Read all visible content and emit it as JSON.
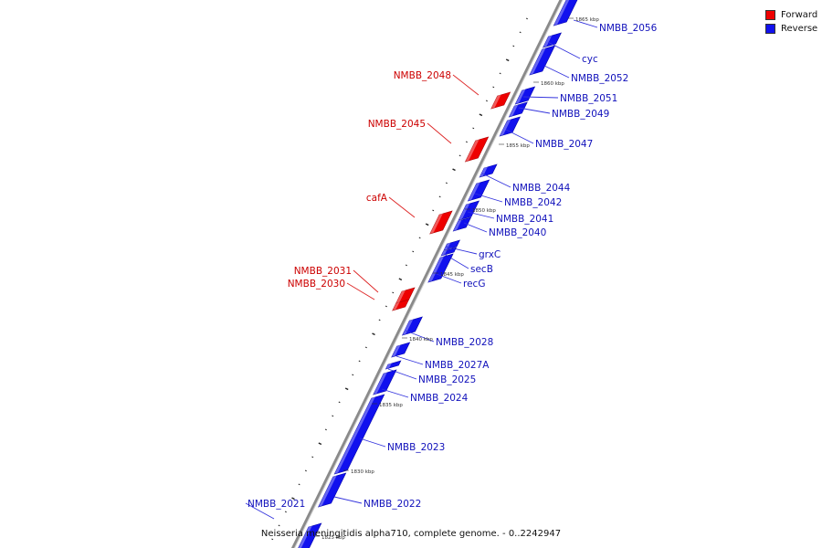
{
  "genome": {
    "title": "Neisseria meningitidis alpha710, complete genome. - 0..2242947"
  },
  "legend": {
    "forward_label": "Forward",
    "reverse_label": "Reverse"
  },
  "colors": {
    "forward": "#ee0000",
    "reverse": "#1111ee",
    "forward_text": "#cc0000",
    "reverse_text": "#1111bb",
    "axis": "#777777"
  },
  "scale_labels": [
    "1865 kbp",
    "1860 kbp",
    "1855 kbp",
    "1850 kbp",
    "1845 kbp",
    "1840 kbp",
    "1835 kbp",
    "1830 kbp",
    "1825 kbp"
  ],
  "genes": [
    {
      "label": "NMBB_2056",
      "strand": "reverse"
    },
    {
      "label": "cyc",
      "strand": "reverse"
    },
    {
      "label": "NMBB_2052",
      "strand": "reverse"
    },
    {
      "label": "NMBB_2051",
      "strand": "reverse"
    },
    {
      "label": "NMBB_2049",
      "strand": "reverse"
    },
    {
      "label": "NMBB_2048",
      "strand": "forward"
    },
    {
      "label": "NMBB_2047",
      "strand": "reverse"
    },
    {
      "label": "NMBB_2045",
      "strand": "forward"
    },
    {
      "label": "NMBB_2044",
      "strand": "reverse"
    },
    {
      "label": "NMBB_2042",
      "strand": "reverse"
    },
    {
      "label": "NMBB_2041",
      "strand": "reverse"
    },
    {
      "label": "cafA",
      "strand": "forward"
    },
    {
      "label": "NMBB_2040",
      "strand": "reverse"
    },
    {
      "label": "grxC",
      "strand": "reverse"
    },
    {
      "label": "secB",
      "strand": "reverse"
    },
    {
      "label": "recG",
      "strand": "reverse"
    },
    {
      "label": "NMBB_2031",
      "strand": "forward"
    },
    {
      "label": "NMBB_2030",
      "strand": "forward"
    },
    {
      "label": "NMBB_2028",
      "strand": "reverse"
    },
    {
      "label": "NMBB_2027A",
      "strand": "reverse"
    },
    {
      "label": "NMBB_2025",
      "strand": "reverse"
    },
    {
      "label": "NMBB_2024",
      "strand": "reverse"
    },
    {
      "label": "NMBB_2023",
      "strand": "reverse"
    },
    {
      "label": "NMBB_2022",
      "strand": "reverse"
    },
    {
      "label": "NMBB_2021",
      "strand": "reverse"
    }
  ]
}
